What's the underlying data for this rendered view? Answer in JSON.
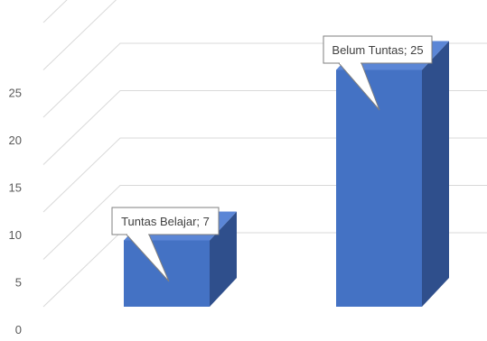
{
  "chart_data": {
    "type": "bar",
    "title": "",
    "xlabel": "",
    "ylabel": "",
    "categories": [
      "Tuntas Belajar",
      "Belum Tuntas"
    ],
    "values": [
      7,
      25
    ],
    "ylim": [
      0,
      30
    ],
    "yticks": [
      0,
      5,
      10,
      15,
      20,
      25
    ],
    "grid": true,
    "style": "3d-column",
    "data_labels": [
      "Tuntas Belajar; 7",
      "Belum Tuntas; 25"
    ],
    "colors": {
      "bar_front": "#4472C4",
      "bar_side": "#2F4F8C",
      "bar_top": "#5B86D6",
      "grid": "#D9D9D9",
      "tick_text": "#595959",
      "callout_border": "#7F7F7F",
      "callout_fill": "#FFFFFF"
    }
  }
}
